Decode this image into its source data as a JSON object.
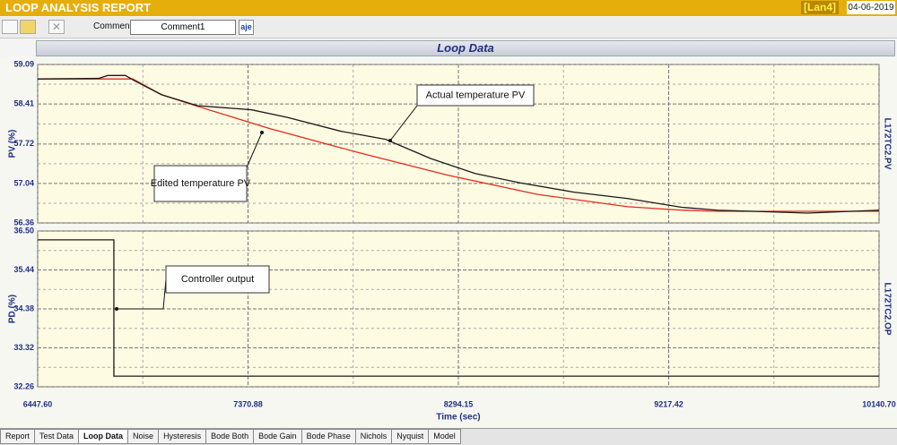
{
  "header": {
    "title": "LOOP ANALYSIS REPORT",
    "unit": "[Lan4]",
    "date": "04-06-2019"
  },
  "toolbar": {
    "comment_label": "Comment",
    "comment": "Comment1",
    "button": "aje"
  },
  "panel_title": "Loop Data",
  "chart_data": [
    {
      "type": "line",
      "ylabel": "PV (%)",
      "tag": "L172TC2.PV",
      "xlim": [
        6447.6,
        10140.7
      ],
      "ylim": [
        56.36,
        59.09
      ],
      "yticks": [
        59.09,
        58.41,
        57.72,
        57.04,
        56.36
      ],
      "grid": true,
      "series": [
        {
          "name": "Edited temperature PV",
          "color": "#e52a1e",
          "x": [
            6447.6,
            6865,
            6991,
            7148,
            7463,
            7857,
            8251,
            8644,
            9038,
            9274,
            9432,
            10140.7
          ],
          "values": [
            58.84,
            58.84,
            58.57,
            58.37,
            57.99,
            57.57,
            57.18,
            56.85,
            56.64,
            56.58,
            56.56,
            56.56
          ]
        },
        {
          "name": "Actual temperature PV",
          "color": "#1a1a1a",
          "x": [
            6447.6,
            6715,
            6755,
            6833,
            6873,
            6991,
            7148,
            7385,
            7542,
            7778,
            7975,
            8172,
            8369,
            8566,
            8802,
            9038,
            9274,
            9432,
            9826,
            10140.7
          ],
          "values": [
            58.84,
            58.85,
            58.9,
            58.9,
            58.81,
            58.57,
            58.38,
            58.31,
            58.18,
            57.94,
            57.8,
            57.47,
            57.21,
            57.05,
            56.89,
            56.78,
            56.63,
            56.58,
            56.53,
            56.58
          ]
        }
      ]
    },
    {
      "type": "line",
      "xlabel": "Time (sec)",
      "ylabel": "PD (%)",
      "tag": "L172TC2.OP",
      "xlim": [
        6447.6,
        10140.7
      ],
      "xticks": [
        {
          "value": 6447.6,
          "label": "6447.60"
        },
        7370.88,
        8294.15,
        9217.42,
        {
          "value": 10140.7,
          "label": "10140.70"
        }
      ],
      "ylim": [
        32.26,
        36.5
      ],
      "yticks": [
        {
          "value": 36.5,
          "label": "36.50"
        },
        35.44,
        34.38,
        33.32,
        32.26
      ],
      "grid": true,
      "series": [
        {
          "name": "Controller output",
          "color": "#1a1a1a",
          "x": [
            6447.6,
            6782,
            6782,
            10140.7
          ],
          "values": [
            36.26,
            36.26,
            32.55,
            32.55
          ]
        }
      ]
    }
  ],
  "tabs": [
    "Report",
    "Test Data",
    "Loop Data",
    "Noise",
    "Hysteresis",
    "Bode Both",
    "Bode Gain",
    "Bode Phase",
    "Nichols",
    "Nyquist",
    "Model"
  ],
  "active_tab": 2
}
